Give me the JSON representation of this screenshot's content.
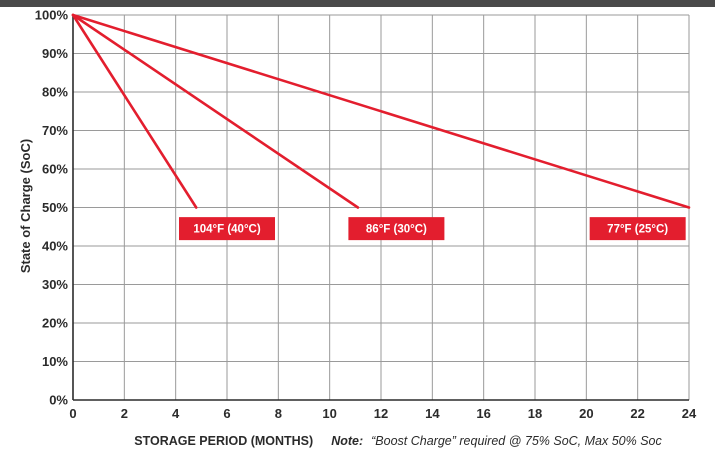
{
  "colors": {
    "header_bar": "#4a4a4a",
    "grid": "#9a9a9a",
    "axis": "#2b2b2b",
    "series": "#e31e2e"
  },
  "chart_data": {
    "type": "line",
    "xlabel": "STORAGE PERIOD (MONTHS)",
    "ylabel": "State of Charge (SoC)",
    "note_prefix": "Note:",
    "note_text": "“Boost Charge” required @ 75% SoC, Max 50% Soc",
    "xlim": [
      0,
      24
    ],
    "ylim": [
      0,
      100
    ],
    "x_ticks": [
      0,
      2,
      4,
      6,
      8,
      10,
      12,
      14,
      16,
      18,
      20,
      22,
      24
    ],
    "x_tick_labels": [
      "0",
      "2",
      "4",
      "6",
      "8",
      "10",
      "12",
      "14",
      "16",
      "18",
      "20",
      "22",
      "24"
    ],
    "y_ticks": [
      0,
      10,
      20,
      30,
      40,
      50,
      60,
      70,
      80,
      90,
      100
    ],
    "y_tick_labels": [
      "0%",
      "10%",
      "20%",
      "30%",
      "40%",
      "50%",
      "60%",
      "70%",
      "80%",
      "90%",
      "100%"
    ],
    "grid": true,
    "series": [
      {
        "name": "104°F (40°C)",
        "x": [
          0,
          4.8
        ],
        "y": [
          100,
          50
        ]
      },
      {
        "name": "86°F (30°C)",
        "x": [
          0,
          11.1
        ],
        "y": [
          100,
          50
        ]
      },
      {
        "name": "77°F (25°C)",
        "x": [
          0,
          24
        ],
        "y": [
          100,
          50
        ]
      }
    ],
    "series_label_positions": [
      {
        "x": 6.0,
        "y": 47.5
      },
      {
        "x": 12.6,
        "y": 47.5
      },
      {
        "x": 22.0,
        "y": 47.5
      }
    ]
  }
}
